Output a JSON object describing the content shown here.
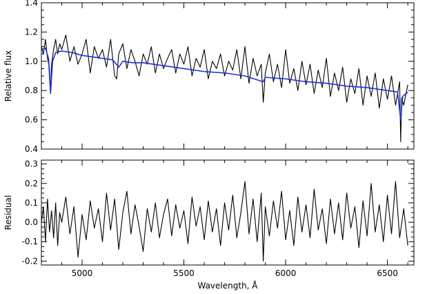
{
  "chart_data": [
    {
      "type": "line",
      "title": "",
      "xlabel": "",
      "ylabel": "Relative flux",
      "xlim": [
        4800,
        6630
      ],
      "ylim": [
        0.4,
        1.4
      ],
      "xticks": [
        5000,
        5500,
        6000,
        6500
      ],
      "xtick_labels": [
        "",
        "",
        "",
        ""
      ],
      "yticks": [
        0.4,
        0.6,
        0.8,
        1.0,
        1.2,
        1.4
      ],
      "ytick_labels": [
        "0.4",
        "0.6",
        "0.8",
        "1.0",
        "1.2",
        "1.4"
      ],
      "grid": false,
      "legend": "none",
      "series": [
        {
          "color": "#000000",
          "x": [
            4800,
            4810,
            4820,
            4830,
            4840,
            4845,
            4850,
            4860,
            4870,
            4880,
            4890,
            4900,
            4920,
            4940,
            4960,
            4980,
            5000,
            5020,
            5040,
            5060,
            5080,
            5100,
            5120,
            5140,
            5160,
            5170,
            5180,
            5200,
            5220,
            5240,
            5260,
            5280,
            5300,
            5320,
            5340,
            5360,
            5380,
            5400,
            5420,
            5440,
            5460,
            5480,
            5500,
            5520,
            5540,
            5560,
            5580,
            5600,
            5620,
            5640,
            5660,
            5680,
            5700,
            5720,
            5740,
            5760,
            5780,
            5800,
            5820,
            5840,
            5860,
            5880,
            5890,
            5900,
            5920,
            5940,
            5960,
            5980,
            6000,
            6020,
            6040,
            6060,
            6080,
            6100,
            6120,
            6140,
            6160,
            6180,
            6200,
            6220,
            6240,
            6260,
            6280,
            6300,
            6320,
            6340,
            6360,
            6380,
            6400,
            6420,
            6440,
            6460,
            6480,
            6500,
            6520,
            6540,
            6560,
            6565,
            6570,
            6580,
            6600
          ],
          "y": [
            1.1,
            1.05,
            1.15,
            1.02,
            0.95,
            0.78,
            0.98,
            1.08,
            1.15,
            1.05,
            1.12,
            1.08,
            1.18,
            1.0,
            1.1,
            0.98,
            1.05,
            1.15,
            0.92,
            1.1,
            1.02,
            1.08,
            0.96,
            1.15,
            0.9,
            0.88,
            1.05,
            1.12,
            0.95,
            1.08,
            1.0,
            0.9,
            1.05,
            0.98,
            1.1,
            0.92,
            1.05,
            0.95,
            1.02,
            1.08,
            0.92,
            1.05,
            0.98,
            1.1,
            0.9,
            1.02,
            0.96,
            1.08,
            0.88,
            1.0,
            0.95,
            1.05,
            0.9,
            1.0,
            0.94,
            1.08,
            0.88,
            1.1,
            0.85,
            1.02,
            0.9,
            0.98,
            0.72,
            0.92,
            1.05,
            0.86,
            0.98,
            0.82,
            1.08,
            0.85,
            0.95,
            0.8,
            1.0,
            0.84,
            0.98,
            0.78,
            0.94,
            0.82,
            1.02,
            0.76,
            0.92,
            0.8,
            0.96,
            0.72,
            0.88,
            0.78,
            0.95,
            0.7,
            0.9,
            0.76,
            0.92,
            0.68,
            0.88,
            0.74,
            0.9,
            0.7,
            0.86,
            0.45,
            0.75,
            0.7,
            0.84
          ]
        },
        {
          "color": "#1f2fd6",
          "x": [
            4800,
            4820,
            4835,
            4845,
            4855,
            4870,
            4900,
            4950,
            5000,
            5050,
            5100,
            5150,
            5180,
            5200,
            5250,
            5300,
            5350,
            5400,
            5500,
            5600,
            5700,
            5800,
            5890,
            5900,
            6000,
            6100,
            6200,
            6300,
            6400,
            6500,
            6550,
            6565,
            6575,
            6600
          ],
          "y": [
            1.08,
            1.09,
            1.02,
            0.78,
            1.0,
            1.06,
            1.07,
            1.06,
            1.04,
            1.03,
            1.02,
            1.01,
            0.96,
            1.0,
            0.99,
            0.99,
            0.98,
            0.97,
            0.95,
            0.93,
            0.92,
            0.9,
            0.86,
            0.89,
            0.88,
            0.86,
            0.85,
            0.83,
            0.82,
            0.8,
            0.79,
            0.6,
            0.76,
            0.79
          ]
        }
      ]
    },
    {
      "type": "line",
      "title": "",
      "xlabel": "Wavelength, Å",
      "ylabel": "Residual",
      "xlim": [
        4800,
        6630
      ],
      "ylim": [
        -0.22,
        0.32
      ],
      "xticks": [
        5000,
        5500,
        6000,
        6500
      ],
      "xtick_labels": [
        "5000",
        "5500",
        "6000",
        "6500"
      ],
      "yticks": [
        -0.2,
        -0.1,
        0.0,
        0.1,
        0.2,
        0.3
      ],
      "ytick_labels": [
        "-0.2",
        "-0.1",
        "0.0",
        "0.1",
        "0.2",
        "0.3"
      ],
      "grid": false,
      "legend": "none",
      "series": [
        {
          "color": "#000000",
          "x": [
            4800,
            4810,
            4820,
            4830,
            4840,
            4850,
            4860,
            4870,
            4880,
            4890,
            4900,
            4920,
            4940,
            4960,
            4980,
            5000,
            5020,
            5040,
            5060,
            5080,
            5100,
            5120,
            5140,
            5160,
            5180,
            5200,
            5220,
            5240,
            5260,
            5280,
            5300,
            5320,
            5340,
            5360,
            5380,
            5400,
            5420,
            5440,
            5460,
            5480,
            5500,
            5520,
            5540,
            5560,
            5580,
            5600,
            5620,
            5640,
            5660,
            5680,
            5700,
            5720,
            5740,
            5760,
            5780,
            5800,
            5820,
            5840,
            5860,
            5880,
            5890,
            5900,
            5920,
            5940,
            5960,
            5980,
            6000,
            6020,
            6040,
            6060,
            6080,
            6100,
            6120,
            6140,
            6160,
            6180,
            6200,
            6220,
            6240,
            6260,
            6280,
            6300,
            6320,
            6340,
            6360,
            6380,
            6400,
            6420,
            6440,
            6460,
            6480,
            6500,
            6520,
            6540,
            6560,
            6580,
            6600
          ],
          "y": [
            0.0,
            0.08,
            -0.1,
            0.12,
            -0.05,
            0.06,
            -0.08,
            0.1,
            -0.12,
            0.05,
            0.0,
            0.13,
            -0.06,
            0.08,
            -0.18,
            0.04,
            -0.09,
            0.11,
            -0.03,
            0.07,
            -0.1,
            0.15,
            -0.04,
            0.12,
            -0.14,
            0.05,
            0.16,
            -0.06,
            0.09,
            -0.02,
            -0.15,
            0.07,
            -0.05,
            0.1,
            -0.08,
            0.04,
            0.12,
            -0.07,
            0.09,
            -0.03,
            0.06,
            -0.11,
            0.13,
            -0.02,
            0.08,
            -0.09,
            0.11,
            -0.05,
            0.07,
            -0.12,
            0.1,
            -0.04,
            0.14,
            -0.08,
            0.05,
            0.21,
            -0.06,
            0.12,
            -0.1,
            0.15,
            -0.2,
            0.08,
            -0.07,
            0.11,
            -0.03,
            0.16,
            -0.09,
            0.06,
            -0.12,
            0.13,
            -0.05,
            0.09,
            -0.08,
            0.17,
            -0.04,
            0.07,
            -0.11,
            0.12,
            -0.06,
            0.1,
            -0.09,
            0.15,
            -0.03,
            0.08,
            -0.13,
            0.11,
            -0.07,
            0.2,
            -0.05,
            0.09,
            -0.1,
            0.14,
            -0.06,
            0.21,
            -0.08,
            0.07,
            -0.12
          ]
        }
      ]
    }
  ]
}
